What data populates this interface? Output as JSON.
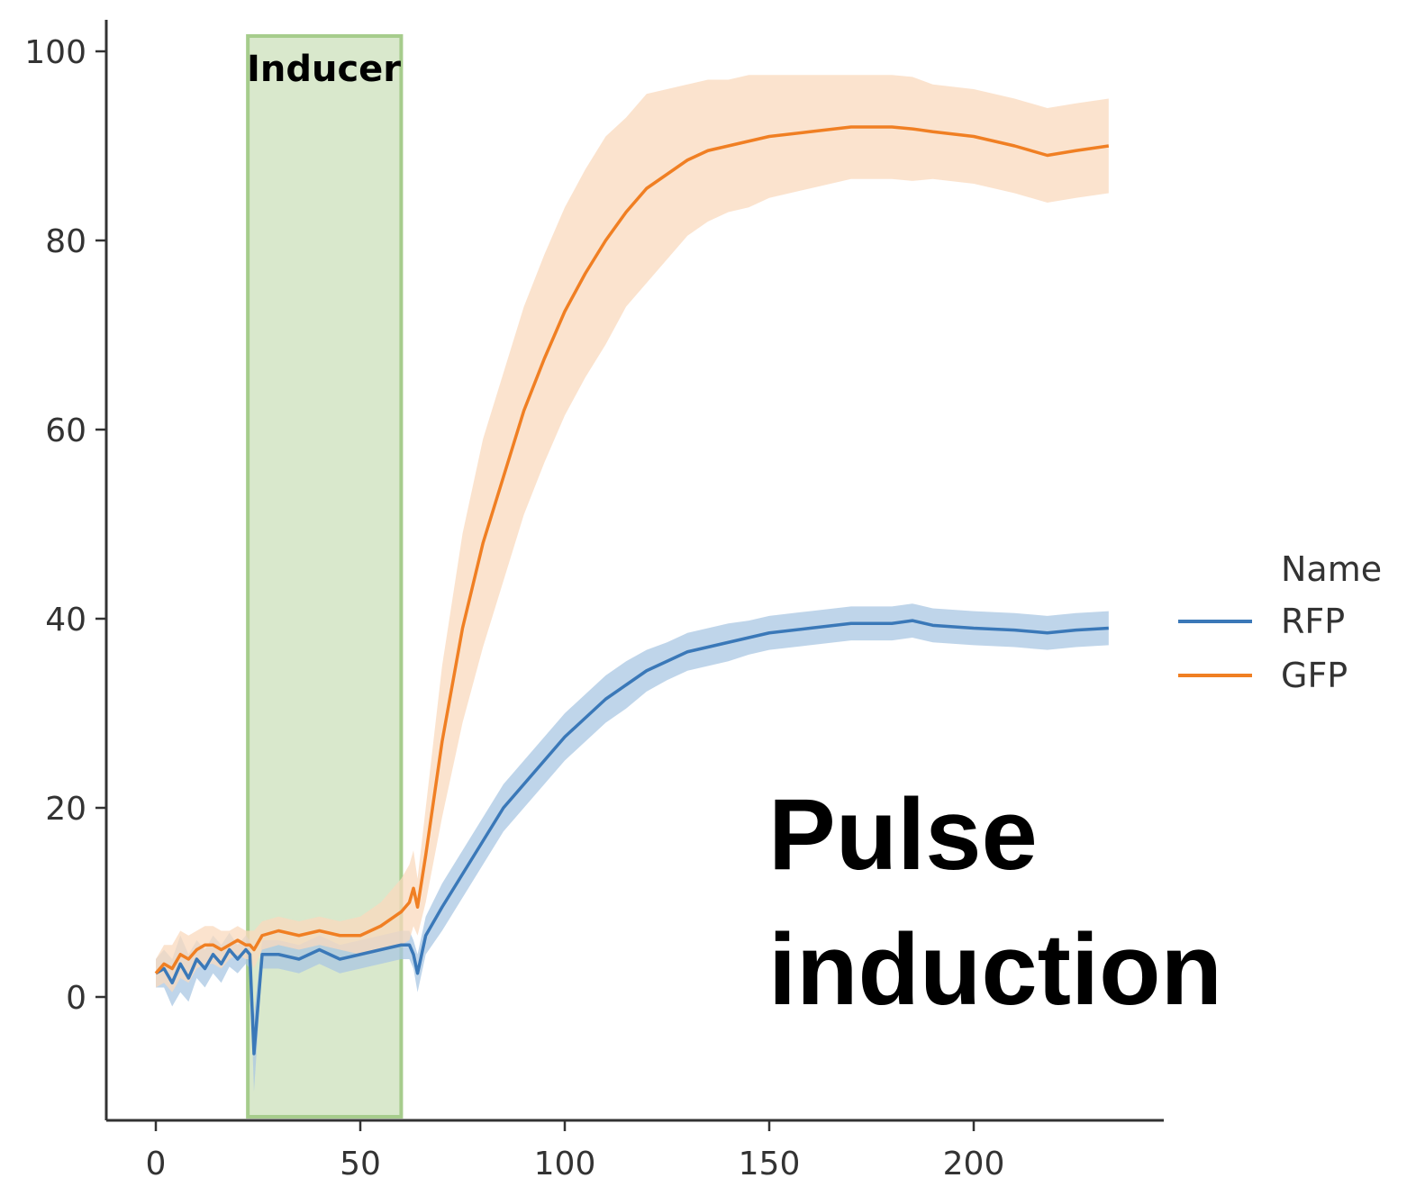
{
  "chart_data": {
    "type": "line",
    "xlabel": "",
    "ylabel": "",
    "xlim": [
      -12,
      246
    ],
    "ylim": [
      -13,
      104
    ],
    "x_ticks": [
      0,
      50,
      100,
      150,
      200
    ],
    "y_ticks": [
      0,
      20,
      40,
      60,
      80,
      100
    ],
    "grid": false,
    "legend": {
      "title": "Name",
      "placement": "right"
    },
    "shaded_region": {
      "label": "Inducer",
      "x_start": 22.5,
      "x_end": 60,
      "color": "#d9e8cc",
      "border_color": "#a6cc8c"
    },
    "annotation": {
      "lines": [
        "Pulse",
        "induction"
      ]
    },
    "series": [
      {
        "name": "RFP",
        "color": "#3a78b8",
        "band_color": "#aac7e3",
        "x": [
          0,
          2,
          4,
          6,
          8,
          10,
          12,
          14,
          16,
          18,
          20,
          22,
          23,
          24,
          26,
          30,
          35,
          40,
          45,
          50,
          55,
          60,
          62,
          63,
          64,
          66,
          70,
          75,
          80,
          85,
          90,
          95,
          100,
          105,
          110,
          115,
          120,
          125,
          130,
          135,
          140,
          145,
          150,
          160,
          170,
          180,
          185,
          190,
          200,
          210,
          218,
          225,
          233
        ],
        "values": [
          2.5,
          3,
          1.5,
          3.5,
          2,
          4,
          3,
          4.5,
          3.5,
          5,
          4,
          5,
          4.5,
          -6,
          4.5,
          4.5,
          4,
          5,
          4,
          4.5,
          5,
          5.5,
          5.5,
          4.5,
          2.5,
          6.5,
          9.5,
          13,
          16.5,
          20,
          22.5,
          25,
          27.5,
          29.5,
          31.5,
          33,
          34.5,
          35.5,
          36.5,
          37,
          37.5,
          38,
          38.5,
          39,
          39.5,
          39.5,
          39.8,
          39.3,
          39,
          38.8,
          38.5,
          38.8,
          39
        ],
        "band_half_width": [
          1.5,
          2,
          2.5,
          3,
          2.5,
          2,
          2,
          2,
          2,
          1.8,
          1.5,
          1.5,
          1.5,
          4,
          1.5,
          1.5,
          1.5,
          1.5,
          1.5,
          1.5,
          1.5,
          1.5,
          1.5,
          1.5,
          2,
          2,
          2.5,
          2.5,
          2.5,
          2.5,
          2.5,
          2.5,
          2.5,
          2.5,
          2.5,
          2.5,
          2.2,
          2,
          2,
          2,
          2,
          1.8,
          1.8,
          1.8,
          1.8,
          1.8,
          1.8,
          1.8,
          1.8,
          1.8,
          1.8,
          1.8,
          1.8
        ]
      },
      {
        "name": "GFP",
        "color": "#f07f23",
        "band_color": "#fad9bd",
        "x": [
          0,
          2,
          4,
          6,
          8,
          10,
          12,
          14,
          16,
          18,
          20,
          22,
          23,
          24,
          26,
          30,
          35,
          40,
          45,
          50,
          55,
          60,
          62,
          63,
          64,
          66,
          70,
          75,
          80,
          85,
          90,
          95,
          100,
          105,
          110,
          115,
          120,
          125,
          130,
          135,
          140,
          145,
          150,
          160,
          170,
          180,
          185,
          190,
          200,
          210,
          218,
          225,
          233
        ],
        "values": [
          2.5,
          3.5,
          3,
          4.5,
          4,
          5,
          5.5,
          5.5,
          5,
          5.5,
          6,
          5.5,
          5.5,
          5,
          6.5,
          7,
          6.5,
          7,
          6.5,
          6.5,
          7.5,
          9,
          10,
          11.5,
          9.5,
          15,
          27,
          39,
          48,
          55,
          62,
          67.5,
          72.5,
          76.5,
          80,
          83,
          85.5,
          87,
          88.5,
          89.5,
          90,
          90.5,
          91,
          91.5,
          92,
          92,
          91.8,
          91.5,
          91,
          90,
          89,
          89.5,
          90
        ],
        "band_half_width": [
          1.5,
          2,
          2.5,
          2.5,
          2.5,
          2,
          2,
          2,
          2,
          1.5,
          1.5,
          1.5,
          1.5,
          2,
          1.5,
          1.5,
          1.5,
          1.5,
          1.5,
          2,
          2.5,
          3.5,
          4,
          4,
          3,
          5,
          8,
          10,
          11,
          11,
          11,
          11,
          11,
          11,
          11,
          10,
          10,
          9,
          8,
          7.5,
          7,
          7,
          6.5,
          6,
          5.5,
          5.5,
          5.5,
          5,
          5,
          5,
          5,
          5,
          5
        ]
      }
    ]
  }
}
